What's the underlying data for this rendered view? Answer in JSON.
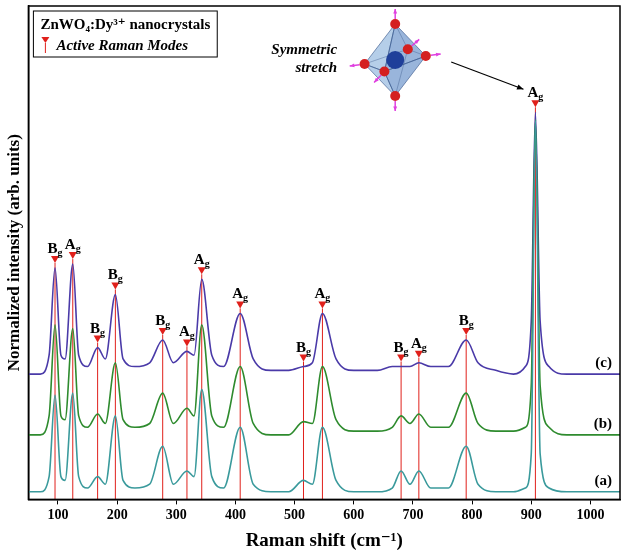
{
  "chart_data": {
    "type": "line",
    "x_label": "Raman shift (cm⁻¹)",
    "y_label": "Normalized intensity (arb. units)",
    "x": [
      50,
      70,
      85,
      95,
      105,
      112,
      125,
      135,
      150,
      167,
      180,
      197,
      210,
      230,
      255,
      277,
      295,
      318,
      330,
      343,
      360,
      380,
      408,
      430,
      460,
      490,
      515,
      530,
      547,
      570,
      600,
      640,
      665,
      680,
      695,
      710,
      730,
      760,
      790,
      810,
      840,
      870,
      890,
      900,
      907,
      915,
      930,
      960,
      1000,
      1050
    ],
    "series": [
      {
        "name": "(a)",
        "color": "#3a9a9c",
        "values": [
          0.02,
          0.02,
          0.06,
          0.275,
          0.06,
          0.05,
          0.28,
          0.06,
          0.03,
          0.06,
          0.04,
          0.22,
          0.05,
          0.03,
          0.04,
          0.14,
          0.04,
          0.075,
          0.06,
          0.29,
          0.06,
          0.03,
          0.19,
          0.04,
          0.02,
          0.02,
          0.05,
          0.04,
          0.19,
          0.05,
          0.02,
          0.02,
          0.03,
          0.075,
          0.04,
          0.075,
          0.03,
          0.03,
          0.14,
          0.04,
          0.02,
          0.02,
          0.03,
          0.12,
          1.0,
          0.12,
          0.03,
          0.02,
          0.02,
          0.02
        ]
      },
      {
        "name": "(b)",
        "color": "#2e8b2e",
        "values": [
          0.17,
          0.17,
          0.22,
          0.46,
          0.22,
          0.21,
          0.45,
          0.22,
          0.19,
          0.225,
          0.2,
          0.36,
          0.21,
          0.19,
          0.2,
          0.28,
          0.2,
          0.24,
          0.22,
          0.46,
          0.22,
          0.19,
          0.35,
          0.2,
          0.17,
          0.17,
          0.205,
          0.2,
          0.35,
          0.21,
          0.18,
          0.18,
          0.19,
          0.22,
          0.2,
          0.225,
          0.19,
          0.19,
          0.28,
          0.2,
          0.18,
          0.18,
          0.19,
          0.3,
          1.0,
          0.3,
          0.19,
          0.17,
          0.17,
          0.17
        ]
      },
      {
        "name": "(c)",
        "color": "#4a3aa8",
        "values": [
          0.33,
          0.33,
          0.38,
          0.61,
          0.38,
          0.37,
          0.62,
          0.38,
          0.35,
          0.4,
          0.37,
          0.54,
          0.37,
          0.35,
          0.36,
          0.42,
          0.36,
          0.39,
          0.38,
          0.58,
          0.38,
          0.35,
          0.49,
          0.37,
          0.34,
          0.34,
          0.35,
          0.36,
          0.49,
          0.37,
          0.34,
          0.34,
          0.35,
          0.35,
          0.35,
          0.36,
          0.35,
          0.35,
          0.42,
          0.36,
          0.34,
          0.33,
          0.35,
          0.47,
          1.02,
          0.47,
          0.35,
          0.33,
          0.33,
          0.33
        ]
      }
    ],
    "xlim": [
      50,
      1050
    ],
    "xticks": [
      100,
      200,
      300,
      400,
      500,
      600,
      700,
      800,
      900,
      1000
    ],
    "ylim": [
      0,
      1.3
    ],
    "tick_labels": "x",
    "grid": false,
    "legend": "upper left",
    "annotations": {
      "sample": "ZnWO₄:Dy³⁺ nanocrystals",
      "marker_label": "Active Raman Modes",
      "inset": "Symmetric stretch"
    },
    "modes": {
      "color": "#e0201b",
      "x": [
        95,
        125,
        167,
        197,
        277,
        318,
        343,
        408,
        515,
        547,
        680,
        710,
        790,
        907
      ],
      "labels": [
        "Bg",
        "Ag",
        "Bg",
        "Bg",
        "Bg",
        "Ag",
        "Ag",
        "Ag",
        "Bg",
        "Ag",
        "Bg",
        "Ag",
        "Bg",
        "Ag"
      ]
    }
  }
}
